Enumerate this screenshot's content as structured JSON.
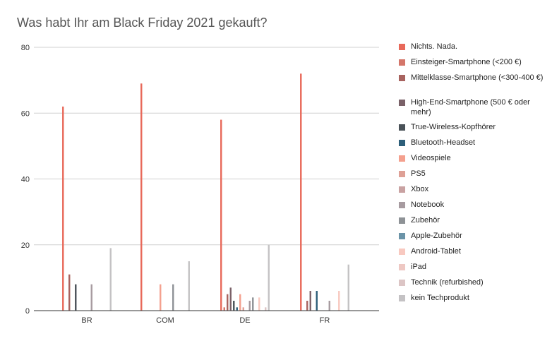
{
  "chart_data": {
    "type": "bar",
    "title": "Was habt Ihr am Black Friday 2021 gekauft?",
    "categories": [
      "BR",
      "COM",
      "DE",
      "FR"
    ],
    "ylim": [
      0,
      80
    ],
    "yticks": [
      0,
      20,
      40,
      60,
      80
    ],
    "grid": true,
    "legend_position": "right",
    "series": [
      {
        "name": "Nichts. Nada.",
        "color": "#e8695a",
        "values": [
          62,
          69,
          58,
          72
        ]
      },
      {
        "name": "Einsteiger-Smartphone (<200 €)",
        "color": "#d4766a",
        "values": [
          0,
          0,
          1,
          0
        ]
      },
      {
        "name": "Mittelklasse-Smartphone (<300-400 €)",
        "color": "#a8635f",
        "values": [
          11,
          0,
          5,
          3
        ]
      },
      {
        "name": "High-End-Smartphone (500 € oder mehr)",
        "color": "#7a6168",
        "values": [
          0,
          0,
          7,
          6
        ]
      },
      {
        "name": "True-Wireless-Kopfhörer",
        "color": "#4a5258",
        "values": [
          8,
          0,
          3,
          0
        ]
      },
      {
        "name": "Bluetooth-Headset",
        "color": "#2d5f7a",
        "values": [
          0,
          0,
          1,
          6
        ]
      },
      {
        "name": "Videospiele",
        "color": "#f4a08e",
        "values": [
          0,
          8,
          5,
          0
        ]
      },
      {
        "name": "PS5",
        "color": "#dea096",
        "values": [
          0,
          0,
          1,
          0
        ]
      },
      {
        "name": "Xbox",
        "color": "#c9a2a2",
        "values": [
          0,
          0,
          0,
          0
        ]
      },
      {
        "name": "Notebook",
        "color": "#a79ba0",
        "values": [
          8,
          0,
          3,
          3
        ]
      },
      {
        "name": "Zubehör",
        "color": "#8e9296",
        "values": [
          0,
          8,
          4,
          0
        ]
      },
      {
        "name": "Apple-Zubehör",
        "color": "#6b94a8",
        "values": [
          0,
          0,
          0,
          0
        ]
      },
      {
        "name": "Android-Tablet",
        "color": "#f8c9c0",
        "values": [
          0,
          0,
          4,
          6
        ]
      },
      {
        "name": "iPad",
        "color": "#eec8c3",
        "values": [
          0,
          0,
          0,
          0
        ]
      },
      {
        "name": "Technik (refurbished)",
        "color": "#dcc5c5",
        "values": [
          0,
          0,
          1,
          0
        ]
      },
      {
        "name": "kein Techprodukt",
        "color": "#c4c2c4",
        "values": [
          19,
          15,
          20,
          14
        ]
      }
    ]
  }
}
